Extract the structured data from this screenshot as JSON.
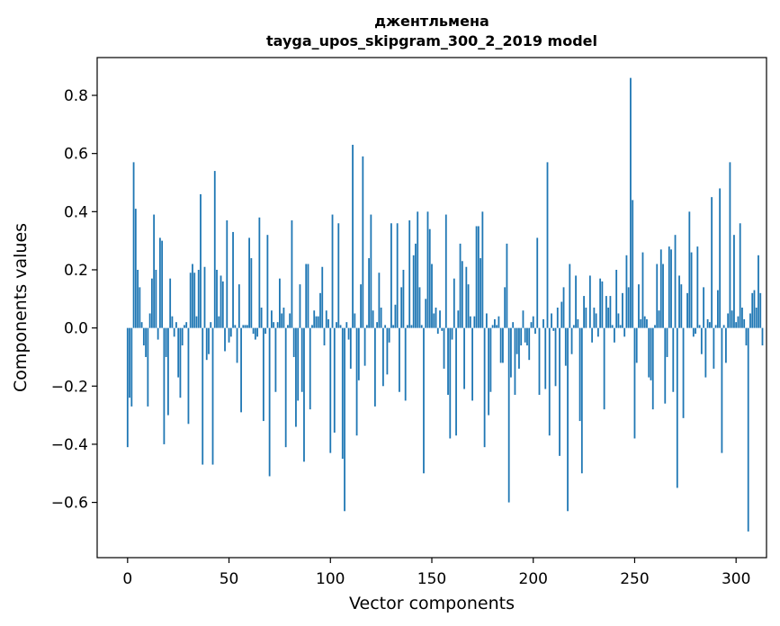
{
  "chart_data": {
    "type": "bar",
    "title": "джентльмена",
    "subtitle": "tayga_upos_skipgram_300_2_2019 model",
    "xlabel": "Vector components",
    "ylabel": "Components values",
    "xlim": [
      -15,
      315
    ],
    "ylim": [
      -0.79,
      0.93
    ],
    "xticks": [
      0,
      50,
      100,
      150,
      200,
      250,
      300
    ],
    "yticks": [
      -0.6,
      -0.4,
      -0.2,
      0.0,
      0.2,
      0.4,
      0.6,
      0.8
    ],
    "ytick_labels": [
      "−0.6",
      "−0.4",
      "−0.2",
      "0.0",
      "0.2",
      "0.4",
      "0.6",
      "0.8"
    ],
    "bar_color": "#1f77b4",
    "grid": false,
    "values": [
      -0.41,
      -0.24,
      -0.27,
      0.57,
      0.41,
      0.2,
      0.14,
      0.02,
      -0.06,
      -0.1,
      -0.27,
      0.05,
      0.17,
      0.39,
      0.2,
      -0.04,
      0.31,
      0.3,
      -0.4,
      -0.1,
      -0.3,
      0.17,
      0.04,
      -0.03,
      0.02,
      -0.17,
      -0.24,
      -0.06,
      0.01,
      0.02,
      -0.33,
      0.19,
      0.22,
      0.19,
      0.04,
      0.2,
      0.46,
      -0.47,
      0.21,
      -0.11,
      -0.09,
      0.02,
      -0.47,
      0.54,
      0.2,
      0.04,
      0.18,
      0.16,
      -0.08,
      0.37,
      -0.05,
      -0.03,
      0.33,
      0.01,
      -0.12,
      0.15,
      -0.29,
      0.01,
      0.01,
      0.01,
      0.31,
      0.24,
      -0.02,
      -0.04,
      -0.03,
      0.38,
      0.07,
      -0.32,
      -0.02,
      0.32,
      -0.51,
      0.06,
      0.02,
      -0.22,
      0.02,
      0.17,
      0.05,
      0.07,
      -0.41,
      0.01,
      0.05,
      0.37,
      -0.1,
      -0.34,
      -0.25,
      0.15,
      -0.22,
      -0.46,
      0.22,
      0.22,
      -0.28,
      0.01,
      0.06,
      0.04,
      0.04,
      0.12,
      0.21,
      -0.06,
      0.06,
      0.03,
      -0.43,
      0.39,
      -0.36,
      0.02,
      0.36,
      0.01,
      -0.45,
      -0.63,
      0.02,
      -0.04,
      -0.14,
      0.63,
      0.05,
      -0.37,
      -0.18,
      0.15,
      0.59,
      -0.13,
      0.01,
      0.24,
      0.39,
      0.06,
      -0.27,
      0.02,
      0.19,
      0.07,
      -0.2,
      0.01,
      -0.16,
      -0.05,
      0.36,
      0.01,
      0.08,
      0.36,
      -0.22,
      0.14,
      0.2,
      -0.25,
      0.01,
      0.37,
      0.01,
      0.25,
      0.29,
      0.4,
      0.14,
      0.01,
      -0.5,
      0.1,
      0.4,
      0.34,
      0.22,
      0.05,
      0.07,
      -0.02,
      0.06,
      -0.01,
      -0.14,
      0.39,
      -0.23,
      -0.38,
      -0.04,
      0.17,
      -0.37,
      0.06,
      0.29,
      0.23,
      -0.21,
      0.21,
      0.15,
      0.04,
      -0.25,
      0.04,
      0.35,
      0.35,
      0.24,
      0.4,
      -0.41,
      0.05,
      -0.3,
      -0.22,
      0.01,
      0.03,
      0.01,
      0.04,
      -0.12,
      -0.12,
      0.14,
      0.29,
      -0.6,
      -0.17,
      0.02,
      -0.23,
      -0.09,
      -0.14,
      -0.06,
      0.06,
      -0.05,
      -0.06,
      -0.11,
      0.02,
      0.04,
      -0.02,
      0.31,
      -0.23,
      0.0,
      0.03,
      -0.21,
      0.57,
      -0.37,
      0.05,
      -0.01,
      -0.2,
      0.07,
      -0.44,
      0.09,
      0.14,
      -0.13,
      -0.63,
      0.22,
      -0.09,
      0.01,
      0.18,
      0.03,
      -0.32,
      -0.5,
      0.11,
      0.07,
      0.0,
      0.18,
      -0.05,
      0.07,
      0.05,
      -0.03,
      0.17,
      0.16,
      -0.28,
      0.11,
      0.07,
      0.11,
      0.01,
      -0.05,
      0.2,
      0.05,
      0.01,
      0.12,
      -0.03,
      0.25,
      0.14,
      0.86,
      0.44,
      -0.38,
      -0.12,
      0.15,
      0.03,
      0.26,
      0.04,
      0.03,
      -0.17,
      -0.18,
      -0.28,
      0.01,
      0.22,
      0.06,
      0.27,
      0.22,
      -0.26,
      -0.1,
      0.28,
      0.27,
      -0.22,
      0.32,
      -0.55,
      0.18,
      0.15,
      -0.31,
      0.0,
      0.12,
      0.4,
      0.26,
      -0.03,
      -0.02,
      0.28,
      0.01,
      -0.09,
      0.14,
      -0.17,
      0.03,
      0.02,
      0.45,
      -0.14,
      0.01,
      0.13,
      0.48,
      -0.43,
      0.01,
      -0.12,
      0.05,
      0.57,
      0.06,
      0.32,
      0.02,
      0.04,
      0.36,
      0.07,
      0.03,
      -0.06,
      -0.7,
      0.05,
      0.12,
      0.13,
      0.07,
      0.25,
      0.12,
      -0.06
    ]
  }
}
